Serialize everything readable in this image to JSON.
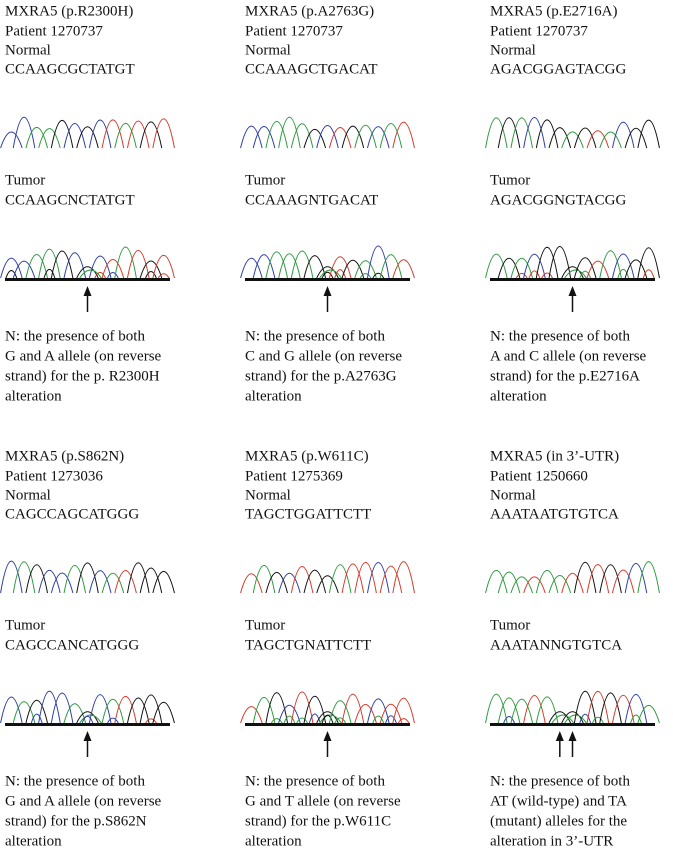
{
  "panels": [
    {
      "title": "MXRA5 (p.R2300H)",
      "patient": "Patient 1270737",
      "normal_label": "Normal",
      "normal_seq": "CCAAGCGCTATGT",
      "tumor_label": "Tumor",
      "tumor_seq": "CCAAGCNCTATGT",
      "note": [
        "N: the presence of both",
        "G and A allele (on reverse",
        "strand) for the p. R2300H",
        "alteration"
      ]
    },
    {
      "title": "MXRA5 (p.A2763G)",
      "patient": "Patient 1270737",
      "normal_label": "Normal",
      "normal_seq": "CCAAAGCTGACAT",
      "tumor_label": "Tumor",
      "tumor_seq": "CCAAAGNTGACAT",
      "note": [
        "N: the presence of both",
        "C and G allele (on reverse",
        "strand) for the p.A2763G",
        "alteration"
      ]
    },
    {
      "title": "MXRA5 (p.E2716A)",
      "patient": "Patient 1270737",
      "normal_label": "Normal",
      "normal_seq": "AGACGGAGTACGG",
      "tumor_label": "Tumor",
      "tumor_seq": "AGACGGNGTACGG",
      "note": [
        "N: the presence of both",
        "A and C allele (on reverse",
        "strand) for the p.E2716A",
        "alteration"
      ]
    },
    {
      "title": "MXRA5 (p.S862N)",
      "patient": "Patient 1273036",
      "normal_label": "Normal",
      "normal_seq": "CAGCCAGCATGGG",
      "tumor_label": "Tumor",
      "tumor_seq": "CAGCCANCATGGG",
      "note": [
        "N: the presence of both",
        "G and A allele (on reverse",
        "strand) for the p.S862N",
        "alteration"
      ]
    },
    {
      "title": "MXRA5 (p.W611C)",
      "patient": "Patient 1275369",
      "normal_label": "Normal",
      "normal_seq": "TAGCTGGATTCTT",
      "tumor_label": "Tumor",
      "tumor_seq": "TAGCTGNATTCTT",
      "note": [
        "N: the presence of both",
        "G and T allele (on reverse",
        "strand) for the p.W611C",
        "alteration"
      ]
    },
    {
      "title": "MXRA5 (in 3’-UTR)",
      "patient": "Patient 1250660",
      "normal_label": "Normal",
      "normal_seq": "AAATAATGTGTCA",
      "tumor_label": "Tumor",
      "tumor_seq": "AAATANNGTGTCA",
      "note": [
        "N: the presence of both",
        "AT (wild-type) and TA",
        "(mutant) alleles for the",
        "alteration in 3’-UTR"
      ]
    }
  ]
}
